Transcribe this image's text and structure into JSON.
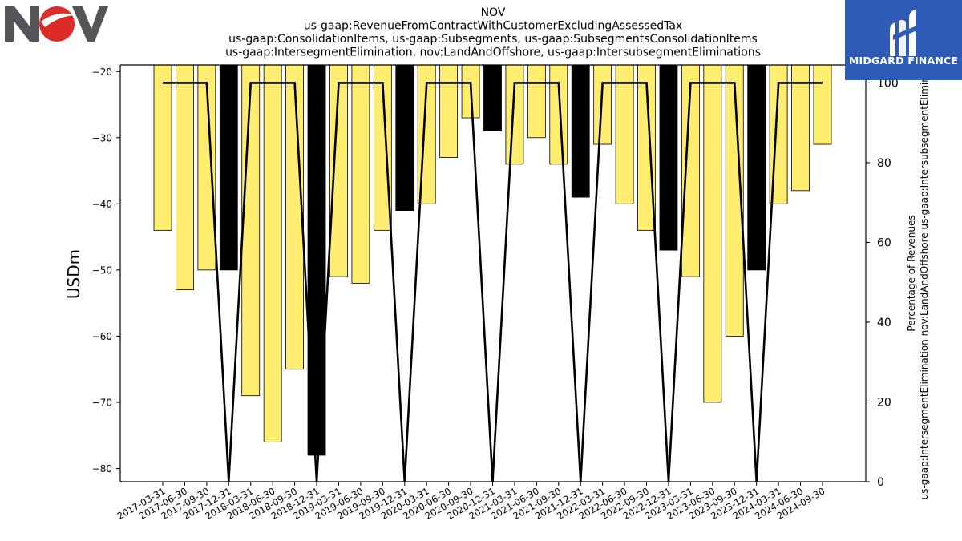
{
  "logo": {
    "company": "NOV"
  },
  "brand": {
    "name": "MIDGARD FINANCE",
    "color": "#2d5bb5"
  },
  "chart_data": {
    "type": "bar",
    "title_lines": [
      "NOV",
      "us-gaap:RevenueFromContractWithCustomerExcludingAssessedTax",
      "us-gaap:ConsolidationItems, us-gaap:Subsegments, us-gaap:SubsegmentsConsolidationItems",
      "us-gaap:IntersegmentElimination, nov:LandAndOffshore, us-gaap:IntersubsegmentEliminations"
    ],
    "ylabel": "USDm",
    "y2label_lines": [
      "Percentage of Revenues",
      "us-gaap:IntersegmentElimination nov:LandAndOffshore us-gaap:IntersubsegmentEliminations"
    ],
    "ylim": [
      -82,
      -19
    ],
    "y2lim": [
      0,
      104.5
    ],
    "yticks": [
      -20,
      -30,
      -40,
      -50,
      -60,
      -70,
      -80
    ],
    "y2ticks": [
      0,
      20,
      40,
      60,
      80,
      100
    ],
    "categories": [
      "2017-03-31",
      "2017-06-30",
      "2017-09-30",
      "2017-12-31",
      "2018-03-31",
      "2018-06-30",
      "2018-09-30",
      "2018-12-31",
      "2019-03-31",
      "2019-06-30",
      "2019-09-30",
      "2019-12-31",
      "2020-03-31",
      "2020-06-30",
      "2020-09-30",
      "2020-12-31",
      "2021-03-31",
      "2021-06-30",
      "2021-09-30",
      "2021-12-31",
      "2022-03-31",
      "2022-06-30",
      "2022-09-30",
      "2022-12-31",
      "2023-03-31",
      "2023-06-30",
      "2023-09-30",
      "2023-12-31",
      "2024-03-31",
      "2024-06-30",
      "2024-09-30"
    ],
    "values": [
      -44,
      -53,
      -50,
      -50,
      -69,
      -76,
      -65,
      -78,
      -51,
      -52,
      -44,
      -41,
      -40,
      -33,
      -27,
      -29,
      -34,
      -30,
      -34,
      -39,
      -31,
      -40,
      -44,
      -47,
      -51,
      -70,
      -60,
      -50,
      -40,
      -38,
      -31
    ],
    "bar_colors": {
      "quarter": "#ffed6f",
      "year_end": "#000000"
    },
    "series": [
      {
        "values": [
          100,
          100,
          100,
          0,
          100,
          100,
          100,
          0,
          100,
          100,
          100,
          0,
          100,
          100,
          100,
          0,
          100,
          100,
          100,
          0,
          100,
          100,
          100,
          0,
          100,
          100,
          100,
          0,
          100,
          100,
          100
        ]
      }
    ],
    "line_color": "#000000",
    "grid": false,
    "legend": "none"
  }
}
